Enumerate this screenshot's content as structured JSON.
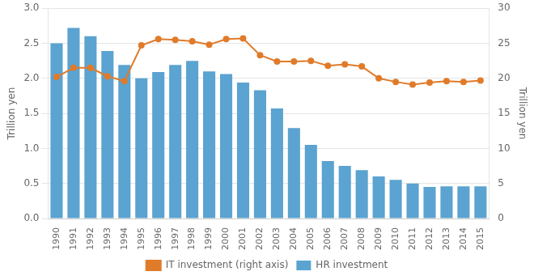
{
  "chart_data": {
    "type": "bar",
    "categories": [
      "1990",
      "1991",
      "1992",
      "1993",
      "1994",
      "1995",
      "1996",
      "1997",
      "1998",
      "1999",
      "2000",
      "2001",
      "2002",
      "2003",
      "2004",
      "2005",
      "2006",
      "2007",
      "2008",
      "2009",
      "2010",
      "2011",
      "2012",
      "2013",
      "2014",
      "2015"
    ],
    "series": [
      {
        "name": "HR investment",
        "type": "bar",
        "color": "#5ba3d0",
        "values": [
          2.5,
          2.72,
          2.6,
          2.39,
          2.19,
          2.0,
          2.09,
          2.19,
          2.25,
          2.1,
          2.06,
          1.94,
          1.83,
          1.57,
          1.29,
          1.05,
          0.82,
          0.75,
          0.69,
          0.6,
          0.55,
          0.5,
          0.45,
          0.46,
          0.46,
          0.46
        ]
      },
      {
        "name": "IT investment (right axis)",
        "type": "line",
        "axis": "y2",
        "color": "#e07b2a",
        "marker": "circle",
        "values": [
          20.2,
          21.5,
          21.5,
          20.3,
          19.6,
          24.7,
          25.6,
          25.5,
          25.3,
          24.8,
          25.6,
          25.7,
          23.3,
          22.4,
          22.4,
          22.5,
          21.8,
          22.0,
          21.7,
          20.0,
          19.5,
          19.1,
          19.4,
          19.6,
          19.5,
          19.7
        ]
      }
    ],
    "ylabel": "Trillion yen",
    "y2label": "Trillion yen",
    "ylim": [
      0,
      3
    ],
    "yticks": [
      {
        "value": 0,
        "label": "0.0"
      },
      0.5,
      {
        "value": 1.0,
        "label": "1.0"
      },
      1.5,
      {
        "value": 2.0,
        "label": "2.0"
      },
      2.5,
      {
        "value": 3.0,
        "label": "3.0"
      }
    ],
    "y2lim": [
      0,
      30
    ],
    "y2ticks": [
      0,
      5,
      10,
      15,
      20,
      25,
      30
    ],
    "grid": true,
    "legend": "bottom"
  }
}
